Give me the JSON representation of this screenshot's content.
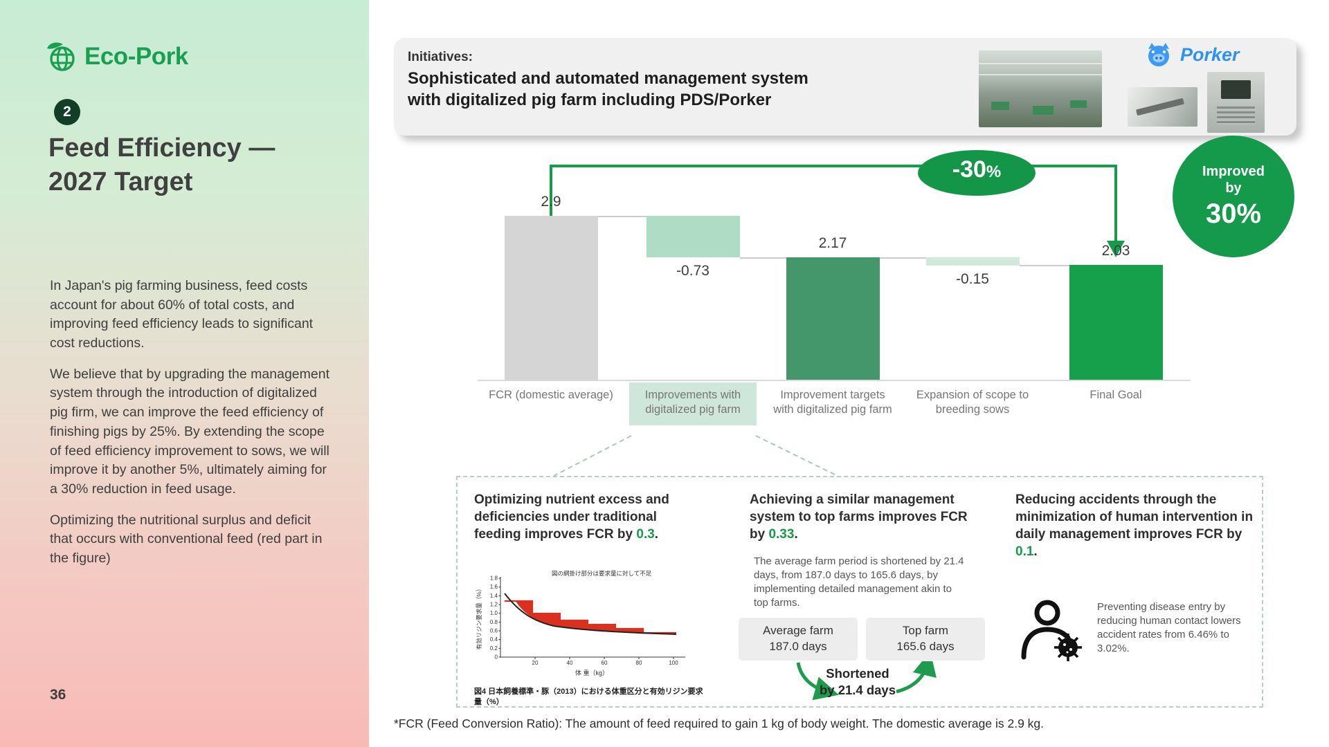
{
  "sidebar": {
    "logo_text": "Eco-Pork",
    "badge_number": "2",
    "title_line1": "Feed Efficiency —",
    "title_line2": "2027 Target",
    "paragraphs": [
      "In Japan's pig farming business, feed costs account for about 60% of total costs, and improving feed efficiency leads to significant cost reductions.",
      "We believe that by upgrading the management system through the introduction of digitalized pig firm, we can improve the feed efficiency of finishing pigs by 25%. By extending the scope of feed efficiency improvement to sows, we will improve it by another 5%, ultimately aiming for a 30% reduction in feed usage.",
      "Optimizing the nutritional surplus and deficit that occurs with conventional feed (red part in the figure)"
    ],
    "page_number": "36"
  },
  "header": {
    "label": "Initiatives:",
    "title_line1": "Sophisticated and automated management system",
    "title_line2": "with digitalized pig farm including PDS/Porker",
    "porker_text": "Porker"
  },
  "chart_data": {
    "type": "waterfall",
    "categories": [
      "FCR (domestic average)",
      "Improvements with digitalized pig farm",
      "Improvement targets with digitalized pig farm",
      "Expansion of scope to breeding sows",
      "Final Goal"
    ],
    "values": [
      2.9,
      -0.73,
      2.17,
      -0.15,
      2.03
    ],
    "value_labels": [
      "2.9",
      "-0.73",
      "2.17",
      "-0.15",
      "2.03"
    ],
    "bar_roles": [
      "total",
      "decrease",
      "subtotal",
      "decrease",
      "total"
    ],
    "bar_colors": [
      "#d5d5d5",
      "#aedcc4",
      "#43976b",
      "#cfe9da",
      "#16a04b"
    ],
    "ylim": [
      0,
      2.9
    ],
    "highlighted_category_index": 1,
    "reduction_badge": {
      "value": "-30",
      "unit": "%"
    },
    "improved_badge": {
      "line1": "Improved",
      "line2": "by",
      "line3": "30%"
    }
  },
  "callout": {
    "col1": {
      "heading_pre": "Optimizing nutrient excess and deficiencies under traditional feeding improves FCR by ",
      "heading_value": "0.3",
      "heading_post": ".",
      "figure": {
        "note": "図の網掛け部分は要求量に対して不足",
        "ylabel": "有効リジン要求量（%）",
        "xlabel": "体 重（kg）",
        "x_ticks": [
          "20",
          "40",
          "60",
          "80",
          "100"
        ],
        "y_ticks": [
          "0",
          "0.2",
          "0.4",
          "0.6",
          "0.8",
          "1.0",
          "1.2",
          "1.4",
          "1.6",
          "1.8"
        ],
        "caption": "図4 日本飼養標準・豚（2013）における体重区分と有効リジン要求量（%）"
      }
    },
    "col2": {
      "heading_pre": "Achieving a similar management system to top farms improves FCR by ",
      "heading_value": "0.33",
      "heading_post": ".",
      "body": "The average farm period is shortened by 21.4 days, from 187.0 days to 165.6 days, by implementing detailed management akin to top farms.",
      "box_average": {
        "line1": "Average farm",
        "line2": "187.0 days"
      },
      "box_top": {
        "line1": "Top farm",
        "line2": "165.6 days"
      },
      "shortened_line1": "Shortened",
      "shortened_line2": "by 21.4 days"
    },
    "col3": {
      "heading_pre": "Reducing accidents through the minimization of human intervention in daily management improves FCR by ",
      "heading_value": "0.1",
      "heading_post": ".",
      "body": "Preventing disease entry by reducing human contact lowers accident rates from 6.46% to 3.02%."
    }
  },
  "footnote": "*FCR (Feed Conversion Ratio): The amount of feed required to gain 1 kg of body weight. The domestic average is 2.9 kg."
}
